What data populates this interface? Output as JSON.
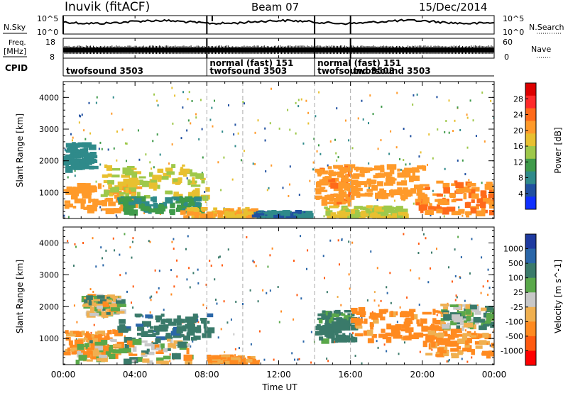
{
  "header": {
    "station": "Inuvik (fitACF)",
    "beam": "Beam 07",
    "date": "15/Dec/2014"
  },
  "status_panels": {
    "nsky_label": "N.Sky",
    "nsky_ticks": [
      "10^5",
      "10^0"
    ],
    "nsearch_label": "N.Search",
    "nsearch_ticks": [
      "10^5",
      "10^0"
    ],
    "freq_label": "Freq.",
    "freq_unit": "[MHz]",
    "freq_ticks": [
      "18",
      "8"
    ],
    "nave_label": "Nave",
    "nave_ticks": [
      "60",
      "0"
    ],
    "cpid_label": "CPID",
    "cpid_segments": [
      {
        "start": "00:00",
        "end": "08:00",
        "lines": [
          "twofsound 3503"
        ]
      },
      {
        "start": "08:00",
        "end": "14:00",
        "lines": [
          "normal (fast) 151",
          "twofsound 3503"
        ]
      },
      {
        "start": "14:00",
        "end": "16:00",
        "lines": [
          "normal (fast) 151",
          "twofsound 3503"
        ]
      },
      {
        "start": "16:00",
        "end": "24:00",
        "lines": [
          "twofsound 3503"
        ]
      }
    ]
  },
  "x_axis": {
    "label": "Time UT",
    "ticks": [
      "00:00",
      "04:00",
      "08:00",
      "12:00",
      "16:00",
      "20:00",
      "00:00"
    ]
  },
  "power_colorbar": {
    "title": "Power [dB]",
    "ticks": [
      "28",
      "24",
      "20",
      "16",
      "12",
      "8",
      "4"
    ],
    "colors": [
      "#dd0000",
      "#ff2a2a",
      "#ff6a1a",
      "#ff9a2a",
      "#e8c030",
      "#9ec84a",
      "#3f9a4a",
      "#2f8a8a",
      "#2050a0",
      "#1030ff"
    ]
  },
  "velocity_colorbar": {
    "title": "Velocity [m s^-1]",
    "ticks": [
      "1000",
      "500",
      "100",
      "25",
      "-25",
      "-100",
      "-500",
      "-1000"
    ],
    "colors": [
      "#1e3aa0",
      "#2a66a8",
      "#3a7a6a",
      "#5aa84a",
      "#c8c8c8",
      "#f0b050",
      "#ff8a20",
      "#ff5a10",
      "#ff0000"
    ]
  },
  "chart_data": [
    {
      "type": "heatmap",
      "title": "Power [dB]",
      "ylabel": "Slant Range [km]",
      "xlabel": "Time UT",
      "xlim": [
        "00:00",
        "24:00"
      ],
      "ylim": [
        180,
        4500
      ],
      "yticks": [
        1000,
        2000,
        3000,
        4000
      ],
      "color_scale": [
        4,
        8,
        12,
        16,
        20,
        24,
        28
      ],
      "regions": [
        {
          "t0": 0.0,
          "t1": 4.0,
          "r0": 500,
          "r1": 1300,
          "value": 26
        },
        {
          "t0": 2.0,
          "t1": 8.0,
          "r0": 900,
          "r1": 1900,
          "value": 20
        },
        {
          "t0": 3.0,
          "t1": 7.5,
          "r0": 450,
          "r1": 900,
          "value": 12
        },
        {
          "t0": 6.5,
          "t1": 10.5,
          "r0": 250,
          "r1": 550,
          "value": 24
        },
        {
          "t0": 10.5,
          "t1": 13.5,
          "r0": 250,
          "r1": 450,
          "value": 8
        },
        {
          "t0": 14.0,
          "t1": 16.0,
          "r0": 700,
          "r1": 1900,
          "value": 27
        },
        {
          "t0": 16.0,
          "t1": 20.0,
          "r0": 900,
          "r1": 1900,
          "value": 26
        },
        {
          "t0": 19.5,
          "t1": 24.0,
          "r0": 400,
          "r1": 1400,
          "value": 28
        },
        {
          "t0": 14.5,
          "t1": 19.0,
          "r0": 300,
          "r1": 600,
          "value": 20
        },
        {
          "t0": 0.0,
          "t1": 1.5,
          "r0": 1800,
          "r1": 2600,
          "value": 10
        }
      ]
    },
    {
      "type": "heatmap",
      "title": "Velocity [m s^-1]",
      "ylabel": "Slant Range [km]",
      "xlabel": "Time UT",
      "xlim": [
        "00:00",
        "24:00"
      ],
      "ylim": [
        180,
        4500
      ],
      "yticks": [
        1000,
        2000,
        3000,
        4000
      ],
      "color_scale": [
        -1000,
        -500,
        -100,
        -25,
        25,
        100,
        500,
        1000
      ],
      "regions": [
        {
          "t0": 0.0,
          "t1": 3.0,
          "r0": 500,
          "r1": 1300,
          "value": -150
        },
        {
          "t0": 3.0,
          "t1": 8.0,
          "r0": 1000,
          "r1": 1800,
          "value": 400
        },
        {
          "t0": 0.5,
          "t1": 7.0,
          "r0": 300,
          "r1": 1000,
          "value": 0
        },
        {
          "t0": 1.0,
          "t1": 3.0,
          "r0": 1800,
          "r1": 2400,
          "value": 0
        },
        {
          "t0": 8.0,
          "t1": 10.5,
          "r0": 250,
          "r1": 500,
          "value": -150
        },
        {
          "t0": 14.0,
          "t1": 16.0,
          "r0": 1000,
          "r1": 1900,
          "value": 200
        },
        {
          "t0": 16.0,
          "t1": 21.0,
          "r0": 1000,
          "r1": 2000,
          "value": -200
        },
        {
          "t0": 20.0,
          "t1": 24.0,
          "r0": 500,
          "r1": 1400,
          "value": -150
        },
        {
          "t0": 21.0,
          "t1": 24.0,
          "r0": 1400,
          "r1": 2100,
          "value": 50
        }
      ]
    }
  ]
}
